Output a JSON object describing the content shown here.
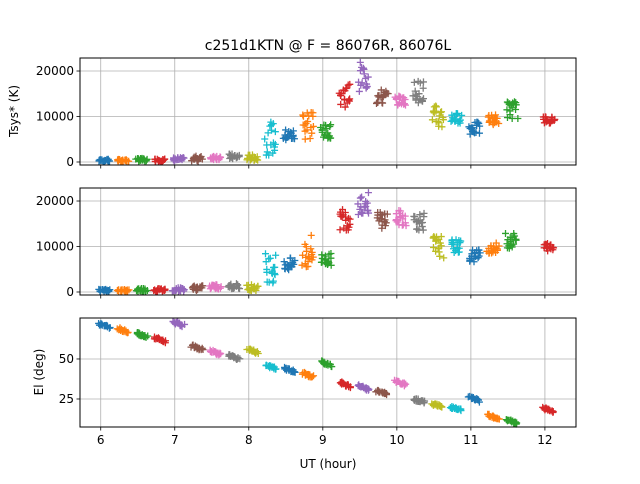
{
  "chart_data": {
    "type": "scatter",
    "title": "c251d1KTN @ F = 86076R, 86076L",
    "xlabel": "UT (hour)",
    "xlim": [
      5.72,
      12.42
    ],
    "xticks": [
      6,
      7,
      8,
      9,
      10,
      11,
      12
    ],
    "grid": true,
    "marker": "+",
    "colors": [
      "#1f77b4",
      "#ff7f0e",
      "#2ca02c",
      "#d62728",
      "#9467bd",
      "#8c564b",
      "#e377c2",
      "#7f7f7f",
      "#bcbd22",
      "#17becf"
    ],
    "panels": [
      {
        "ylabel": "Tsys* (K)",
        "ylim": [
          -660,
          22860
        ],
        "yticks": [
          0,
          10000,
          20000
        ],
        "series_key": "tsys_r"
      },
      {
        "ylabel": "",
        "ylim": [
          -660,
          22860
        ],
        "yticks": [
          0,
          10000,
          20000
        ],
        "series_key": "tsys_l"
      },
      {
        "ylabel": "El (deg)",
        "ylim": [
          7.5,
          75.6
        ],
        "yticks": [
          25,
          50
        ],
        "series_key": "el"
      }
    ],
    "scans": [
      {
        "ut": 6.05,
        "el": 71,
        "tsys_r": [
          100,
          600
        ],
        "tsys_l": [
          100,
          600
        ]
      },
      {
        "ut": 6.3,
        "el": 68,
        "tsys_r": [
          100,
          600
        ],
        "tsys_l": [
          100,
          600
        ]
      },
      {
        "ut": 6.55,
        "el": 65,
        "tsys_r": [
          100,
          800
        ],
        "tsys_l": [
          100,
          900
        ]
      },
      {
        "ut": 6.8,
        "el": 62,
        "tsys_r": [
          100,
          700
        ],
        "tsys_l": [
          100,
          800
        ]
      },
      {
        "ut": 7.05,
        "el": 72,
        "tsys_r": [
          200,
          1000
        ],
        "tsys_l": [
          200,
          1000
        ]
      },
      {
        "ut": 7.3,
        "el": 57,
        "tsys_r": [
          200,
          1300
        ],
        "tsys_l": [
          300,
          1400
        ]
      },
      {
        "ut": 7.55,
        "el": 54,
        "tsys_r": [
          500,
          1500
        ],
        "tsys_l": [
          600,
          1700
        ]
      },
      {
        "ut": 7.8,
        "el": 51,
        "tsys_r": [
          500,
          1800
        ],
        "tsys_l": [
          600,
          1900
        ]
      },
      {
        "ut": 8.05,
        "el": 55,
        "tsys_r": [
          300,
          1600
        ],
        "tsys_l": [
          300,
          1700
        ]
      },
      {
        "ut": 8.3,
        "el": 45,
        "tsys_r": [
          1500,
          8800
        ],
        "tsys_l": [
          2000,
          8700
        ]
      },
      {
        "ut": 8.55,
        "el": 43,
        "tsys_r": [
          4500,
          7200
        ],
        "tsys_l": [
          4500,
          7500
        ]
      },
      {
        "ut": 8.8,
        "el": 40,
        "tsys_r": [
          4500,
          12500
        ],
        "tsys_l": [
          4500,
          13000
        ]
      },
      {
        "ut": 9.05,
        "el": 47,
        "tsys_r": [
          5200,
          8200
        ],
        "tsys_l": [
          5800,
          8500
        ]
      },
      {
        "ut": 9.3,
        "el": 34,
        "tsys_r": [
          12000,
          17500
        ],
        "tsys_l": [
          13500,
          18500
        ]
      },
      {
        "ut": 9.55,
        "el": 32,
        "tsys_r": [
          15500,
          22000
        ],
        "tsys_l": [
          17000,
          22000
        ]
      },
      {
        "ut": 9.8,
        "el": 29,
        "tsys_r": [
          12500,
          16000
        ],
        "tsys_l": [
          14000,
          18000
        ]
      },
      {
        "ut": 10.05,
        "el": 35,
        "tsys_r": [
          12500,
          14500
        ],
        "tsys_l": [
          14500,
          18000
        ]
      },
      {
        "ut": 10.3,
        "el": 24,
        "tsys_r": [
          13000,
          18000
        ],
        "tsys_l": [
          13500,
          17500
        ]
      },
      {
        "ut": 10.55,
        "el": 21,
        "tsys_r": [
          7000,
          12500
        ],
        "tsys_l": [
          7500,
          12500
        ]
      },
      {
        "ut": 10.8,
        "el": 19,
        "tsys_r": [
          8500,
          10800
        ],
        "tsys_l": [
          8500,
          11500
        ]
      },
      {
        "ut": 11.05,
        "el": 25,
        "tsys_r": [
          6000,
          8800
        ],
        "tsys_l": [
          6500,
          9500
        ]
      },
      {
        "ut": 11.3,
        "el": 14,
        "tsys_r": [
          8200,
          10500
        ],
        "tsys_l": [
          8500,
          10800
        ]
      },
      {
        "ut": 11.55,
        "el": 11,
        "tsys_r": [
          9500,
          13500
        ],
        "tsys_l": [
          9500,
          13000
        ]
      },
      {
        "ut": 12.05,
        "el": 18,
        "tsys_r": [
          8500,
          10000
        ],
        "tsys_l": [
          9000,
          10800
        ]
      }
    ]
  }
}
